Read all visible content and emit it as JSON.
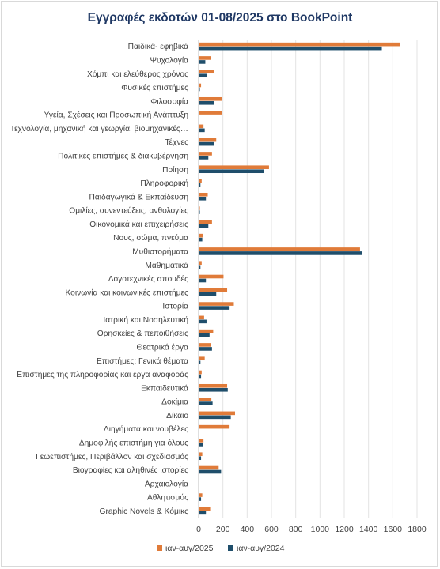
{
  "chart_data": {
    "type": "bar",
    "orientation": "horizontal",
    "title": "Εγγραφές εκδοτών 01-08/2025 στο BookPoint",
    "xlim": [
      0,
      1800
    ],
    "x_ticks": [
      0,
      200,
      400,
      600,
      800,
      1000,
      1200,
      1400,
      1600,
      1800
    ],
    "grid": true,
    "legend_position": "bottom",
    "categories": [
      "Παιδικά- εφηβικά",
      "Ψυχολογία",
      "Χόμπι και ελεύθερος χρόνος",
      "Φυσικές επιστήμες",
      "Φιλοσοφία",
      "Υγεία, Σχέσεις και Προσωπική Ανάπτυξη",
      "Τεχνολογία, μηχανική και γεωργία, βιομηχανικές…",
      "Τέχνες",
      "Πολιτικές επιστήμες & διακυβέρνηση",
      "Ποίηση",
      "Πληροφορική",
      "Παιδαγωγικά & Εκπαίδευση",
      "Ομιλίες, συνεντεύξεις, ανθολογίες",
      "Οικονομικά και επιχειρήσεις",
      "Νους, σώμα, πνεύμα",
      "Μυθιστορήματα",
      "Μαθηματικά",
      "Λογοτεχνικές σπουδές",
      "Κοινωνία και κοινωνικές επιστήμες",
      "Ιστορία",
      "Ιατρική και Νοσηλευτική",
      "Θρησκείες & πεποιθήσεις",
      "Θεατρικά έργα",
      "Επιστήμες: Γενικά θέματα",
      "Επιστήμες της πληροφορίας και έργα αναφοράς",
      "Εκπαιδευτικά",
      "Δοκίμια",
      "Δίκαιο",
      "Διηγήματα και νουβέλες",
      "Δημοφιλής επιστήμη για όλους",
      "Γεωεπιστήμες, Περιβάλλον και σχεδιασμός",
      "Βιογραφίες και αληθινές ιστορίες",
      "Αρχαιολογία",
      "Αθλητισμός",
      "Graphic Novels & Κόμικς"
    ],
    "series": [
      {
        "name": "ιαν-αυγ/2025",
        "color": "#e07b39",
        "values": [
          1660,
          100,
          130,
          20,
          190,
          195,
          40,
          145,
          110,
          580,
          25,
          75,
          10,
          110,
          35,
          1330,
          25,
          205,
          235,
          290,
          45,
          120,
          100,
          50,
          25,
          235,
          105,
          300,
          255,
          40,
          30,
          165,
          5,
          30,
          95
        ]
      },
      {
        "name": "ιαν-αυγ/2024",
        "color": "#1f4e6b",
        "values": [
          1510,
          55,
          70,
          10,
          130,
          0,
          50,
          130,
          80,
          540,
          15,
          60,
          10,
          80,
          30,
          1350,
          15,
          60,
          145,
          255,
          65,
          90,
          110,
          15,
          20,
          240,
          115,
          265,
          0,
          35,
          20,
          185,
          5,
          20,
          60
        ]
      }
    ]
  }
}
